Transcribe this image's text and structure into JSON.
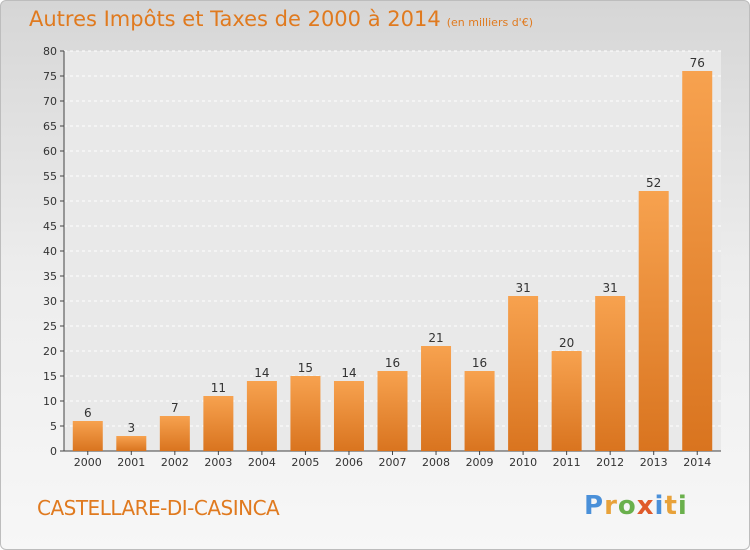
{
  "header": {
    "title": "Autres Impôts et Taxes de 2000 à 2014",
    "unit": "(en milliers d'€)"
  },
  "footer": {
    "commune": "CASTELLARE-DI-CASINCA",
    "logo_letters": [
      "P",
      "r",
      "o",
      "x",
      "i",
      "t",
      "i"
    ],
    "logo_colors": [
      "#4a90d9",
      "#e8a23a",
      "#6ab04c",
      "#e05a2a",
      "#4a90d9",
      "#e8a23a",
      "#6ab04c"
    ]
  },
  "colors": {
    "bar_top": "#f7a24f",
    "bar_bottom": "#d9741f",
    "accent": "#e07a1f"
  },
  "chart_data": {
    "type": "bar",
    "categories": [
      "2000",
      "2001",
      "2002",
      "2003",
      "2004",
      "2005",
      "2006",
      "2007",
      "2008",
      "2009",
      "2010",
      "2011",
      "2012",
      "2013",
      "2014"
    ],
    "values": [
      6,
      3,
      7,
      11,
      14,
      15,
      14,
      16,
      21,
      16,
      31,
      20,
      31,
      52,
      76
    ],
    "title": "Autres Impôts et Taxes de 2000 à 2014",
    "xlabel": "",
    "ylabel": "",
    "ylim": [
      0,
      80
    ],
    "yticks": [
      0,
      5,
      10,
      15,
      20,
      25,
      30,
      35,
      40,
      45,
      50,
      55,
      60,
      65,
      70,
      75,
      80
    ],
    "grid": true,
    "legend": "none"
  }
}
